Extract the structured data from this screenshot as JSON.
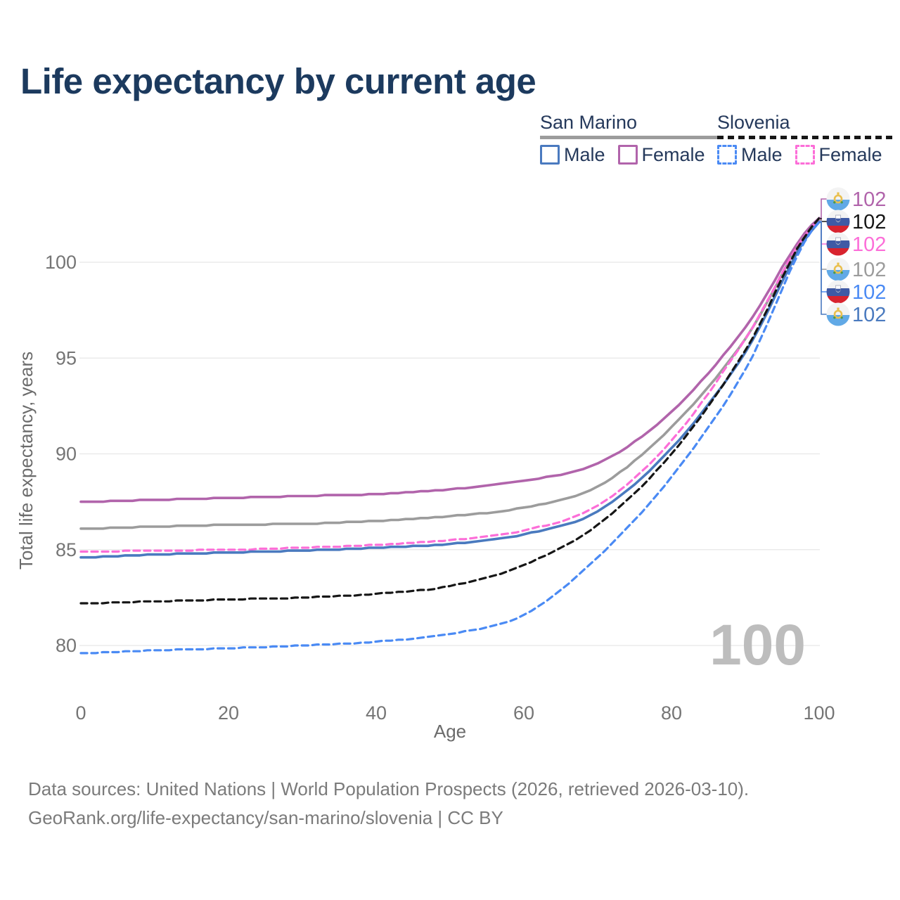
{
  "title": "Life expectancy by current age",
  "legend": {
    "groups": [
      {
        "name": "San Marino",
        "line_style": "solid",
        "color": "#9c9c9c",
        "items": [
          {
            "label": "Male",
            "color": "#4a7abf"
          },
          {
            "label": "Female",
            "color": "#b164ab"
          }
        ]
      },
      {
        "name": "Slovenia",
        "line_style": "dashed",
        "color": "#161616",
        "items": [
          {
            "label": "Male",
            "color": "#4a8af4"
          },
          {
            "label": "Female",
            "color": "#fc6ed8"
          }
        ]
      }
    ]
  },
  "chart_data": {
    "type": "line",
    "title": "Life expectancy by current age",
    "xlabel": "Age",
    "ylabel": "Total life expectancy, years",
    "x": [
      0,
      10,
      20,
      30,
      40,
      50,
      60,
      70,
      80,
      90,
      100
    ],
    "xticks": [
      "0",
      "20",
      "40",
      "60",
      "80",
      "100"
    ],
    "yticks": [
      "80",
      "85",
      "90",
      "95",
      "100"
    ],
    "xlim": [
      0,
      100
    ],
    "ylim": [
      78.2,
      104
    ],
    "grid": "horizontal",
    "legend_position": "top-right",
    "series": [
      {
        "name": "San Marino Female",
        "color": "#b164ab",
        "dashed": false,
        "values": [
          87.5,
          87.6,
          87.7,
          87.8,
          87.9,
          88.15,
          88.6,
          89.5,
          92.2,
          96.6,
          102.3
        ]
      },
      {
        "name": "San Marino All",
        "color": "#9c9c9c",
        "dashed": false,
        "values": [
          86.1,
          86.2,
          86.3,
          86.35,
          86.5,
          86.75,
          87.2,
          88.3,
          91.4,
          96.0,
          102.2
        ]
      },
      {
        "name": "Slovenia Female",
        "color": "#fc6ed8",
        "dashed": true,
        "values": [
          84.9,
          84.95,
          85.0,
          85.1,
          85.25,
          85.5,
          86.0,
          87.3,
          90.7,
          96.0,
          102.22
        ]
      },
      {
        "name": "San Marino Male",
        "color": "#4a7abf",
        "dashed": false,
        "values": [
          84.6,
          84.75,
          84.85,
          84.95,
          85.1,
          85.3,
          85.8,
          87.0,
          90.3,
          95.3,
          102.08
        ]
      },
      {
        "name": "Slovenia All",
        "color": "#161616",
        "dashed": true,
        "values": [
          82.2,
          82.3,
          82.4,
          82.5,
          82.7,
          83.1,
          84.2,
          86.3,
          90.0,
          95.4,
          102.28
        ]
      },
      {
        "name": "Slovenia Male",
        "color": "#4a8af4",
        "dashed": true,
        "values": [
          79.6,
          79.75,
          79.85,
          80.0,
          80.2,
          80.6,
          81.6,
          84.6,
          88.8,
          94.4,
          102.12
        ]
      }
    ],
    "end_labels": [
      {
        "value": "102",
        "flag": "san-marino",
        "series": "San Marino Female",
        "color": "#b164ab"
      },
      {
        "value": "102",
        "flag": "slovenia",
        "series": "Slovenia All",
        "color": "#161616"
      },
      {
        "value": "102",
        "flag": "slovenia",
        "series": "Slovenia Female",
        "color": "#fc6ed8"
      },
      {
        "value": "102",
        "flag": "san-marino",
        "series": "San Marino All",
        "color": "#9c9c9c"
      },
      {
        "value": "102",
        "flag": "slovenia",
        "series": "Slovenia Male",
        "color": "#4a8af4"
      },
      {
        "value": "102",
        "flag": "san-marino",
        "series": "San Marino Male",
        "color": "#4a7abf"
      }
    ],
    "watermark": "100",
    "gridline_color": "#e7e7e7"
  },
  "footer": {
    "line1": "Data sources: United Nations | World Population Prospects (2026, retrieved 2026-03-10).",
    "line2": "GeoRank.org/life-expectancy/san-marino/slovenia | CC BY"
  }
}
